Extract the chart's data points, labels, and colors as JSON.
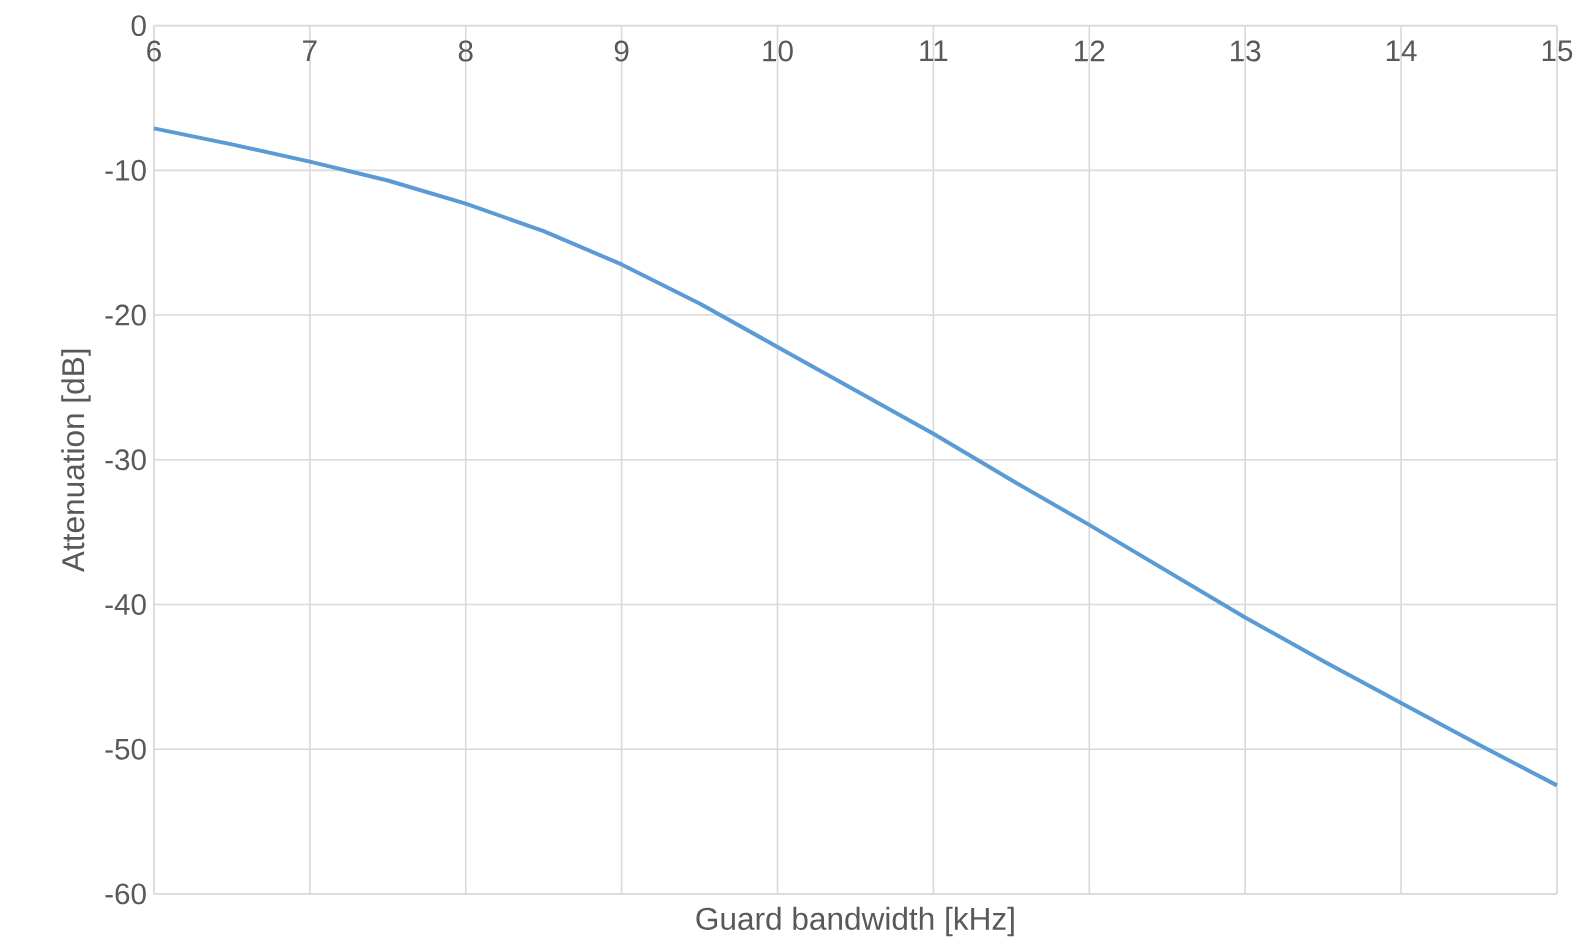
{
  "chart_data": {
    "type": "line",
    "xlabel": "Guard bandwidth [kHz]",
    "ylabel": "Attenuation [dB]",
    "x": [
      6,
      6.5,
      7,
      7.5,
      8,
      8.5,
      9,
      9.5,
      10,
      10.5,
      11,
      11.5,
      12,
      12.5,
      13,
      13.5,
      14,
      14.5,
      15
    ],
    "series": [
      {
        "color": "#5b9bd5",
        "values": [
          -7.1,
          -8.2,
          -9.4,
          -10.7,
          -12.3,
          -14.2,
          -16.5,
          -19.2,
          -22.2,
          -25.2,
          -28.2,
          -31.4,
          -34.5,
          -37.7,
          -40.9,
          -43.9,
          -46.8,
          -49.7,
          -52.5
        ]
      }
    ],
    "xlim": [
      6,
      15
    ],
    "ylim": [
      -60,
      0
    ],
    "xticks": [
      6,
      7,
      8,
      9,
      10,
      11,
      12,
      13,
      14,
      15
    ],
    "yticks": [
      -60,
      -50,
      -40,
      -30,
      -20,
      -10,
      0
    ],
    "grid": true,
    "marker": "none",
    "line_style": "solid"
  }
}
